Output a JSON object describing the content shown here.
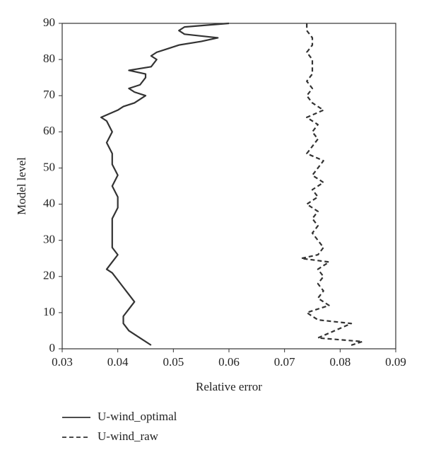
{
  "chart_data": {
    "type": "line",
    "xlabel": "Relative error",
    "ylabel": "Model level",
    "xlim": [
      0.03,
      0.09
    ],
    "xticks": [
      0.03,
      0.04,
      0.05,
      0.06,
      0.07,
      0.08,
      0.09
    ],
    "ylim": [
      0,
      90
    ],
    "yticks": [
      0,
      10,
      20,
      30,
      40,
      50,
      60,
      70,
      80,
      90
    ],
    "series": [
      {
        "name": "U-wind_optimal",
        "color": "#333333",
        "line_style": "solid",
        "levels": [
          1,
          3,
          5,
          7,
          9,
          11,
          13,
          15,
          17,
          19,
          21,
          22,
          24,
          26,
          28,
          30,
          33,
          36,
          39,
          42,
          45,
          48,
          51,
          54,
          57,
          60,
          63,
          64,
          66,
          67,
          68,
          70,
          71,
          72,
          73,
          75,
          76,
          77,
          78,
          80,
          81,
          82,
          83,
          84,
          85,
          86,
          87,
          88,
          89,
          90
        ],
        "values": [
          0.046,
          0.044,
          0.042,
          0.041,
          0.041,
          0.042,
          0.043,
          0.042,
          0.041,
          0.04,
          0.039,
          0.038,
          0.039,
          0.04,
          0.039,
          0.039,
          0.039,
          0.039,
          0.04,
          0.04,
          0.039,
          0.04,
          0.039,
          0.039,
          0.038,
          0.039,
          0.038,
          0.037,
          0.04,
          0.041,
          0.043,
          0.045,
          0.043,
          0.042,
          0.044,
          0.045,
          0.045,
          0.042,
          0.046,
          0.047,
          0.046,
          0.047,
          0.049,
          0.051,
          0.055,
          0.058,
          0.052,
          0.051,
          0.052,
          0.06
        ]
      },
      {
        "name": "U-wind_raw",
        "color": "#333333",
        "line_style": "dashed",
        "levels": [
          1,
          2,
          3,
          5,
          7,
          8,
          9,
          10,
          12,
          14,
          16,
          18,
          20,
          22,
          24,
          25,
          26,
          28,
          30,
          32,
          34,
          36,
          38,
          40,
          42,
          44,
          46,
          48,
          50,
          52,
          54,
          56,
          58,
          60,
          62,
          64,
          66,
          68,
          70,
          72,
          74,
          76,
          78,
          80,
          82,
          84,
          86,
          88,
          90
        ],
        "values": [
          0.082,
          0.084,
          0.076,
          0.079,
          0.082,
          0.076,
          0.075,
          0.074,
          0.078,
          0.076,
          0.077,
          0.076,
          0.077,
          0.076,
          0.078,
          0.073,
          0.076,
          0.077,
          0.076,
          0.075,
          0.076,
          0.075,
          0.076,
          0.074,
          0.076,
          0.075,
          0.077,
          0.075,
          0.076,
          0.077,
          0.074,
          0.075,
          0.076,
          0.075,
          0.076,
          0.074,
          0.077,
          0.075,
          0.074,
          0.075,
          0.074,
          0.075,
          0.075,
          0.075,
          0.074,
          0.075,
          0.075,
          0.074,
          0.074
        ]
      }
    ]
  }
}
